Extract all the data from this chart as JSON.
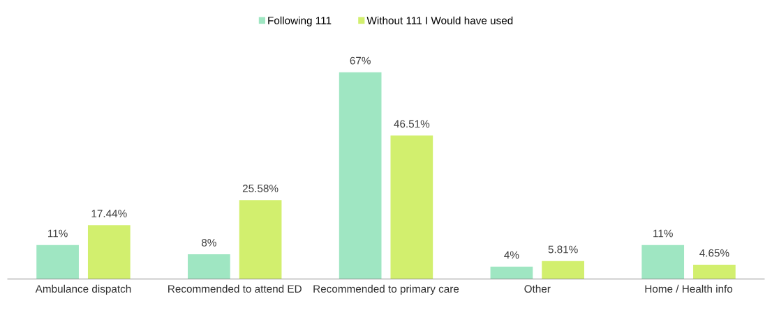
{
  "chart_data": {
    "type": "bar",
    "categories": [
      "Ambulance dispatch",
      "Recommended to attend ED",
      "Recommended to primary care",
      "Other",
      "Home / Health info"
    ],
    "series": [
      {
        "name": "Following 111",
        "color": "#9fe6c2",
        "values": [
          11,
          8,
          67,
          4,
          11
        ],
        "value_labels": [
          "11%",
          "8%",
          "67%",
          "4%",
          "11%"
        ]
      },
      {
        "name": "Without 111 I Would have used",
        "color": "#d2ef6e",
        "values": [
          17.44,
          25.58,
          46.51,
          5.81,
          4.65
        ],
        "value_labels": [
          "17.44%",
          "25.58%",
          "46.51%",
          "5.81%",
          "4.65%"
        ]
      }
    ],
    "legend": "top",
    "grid": false
  }
}
